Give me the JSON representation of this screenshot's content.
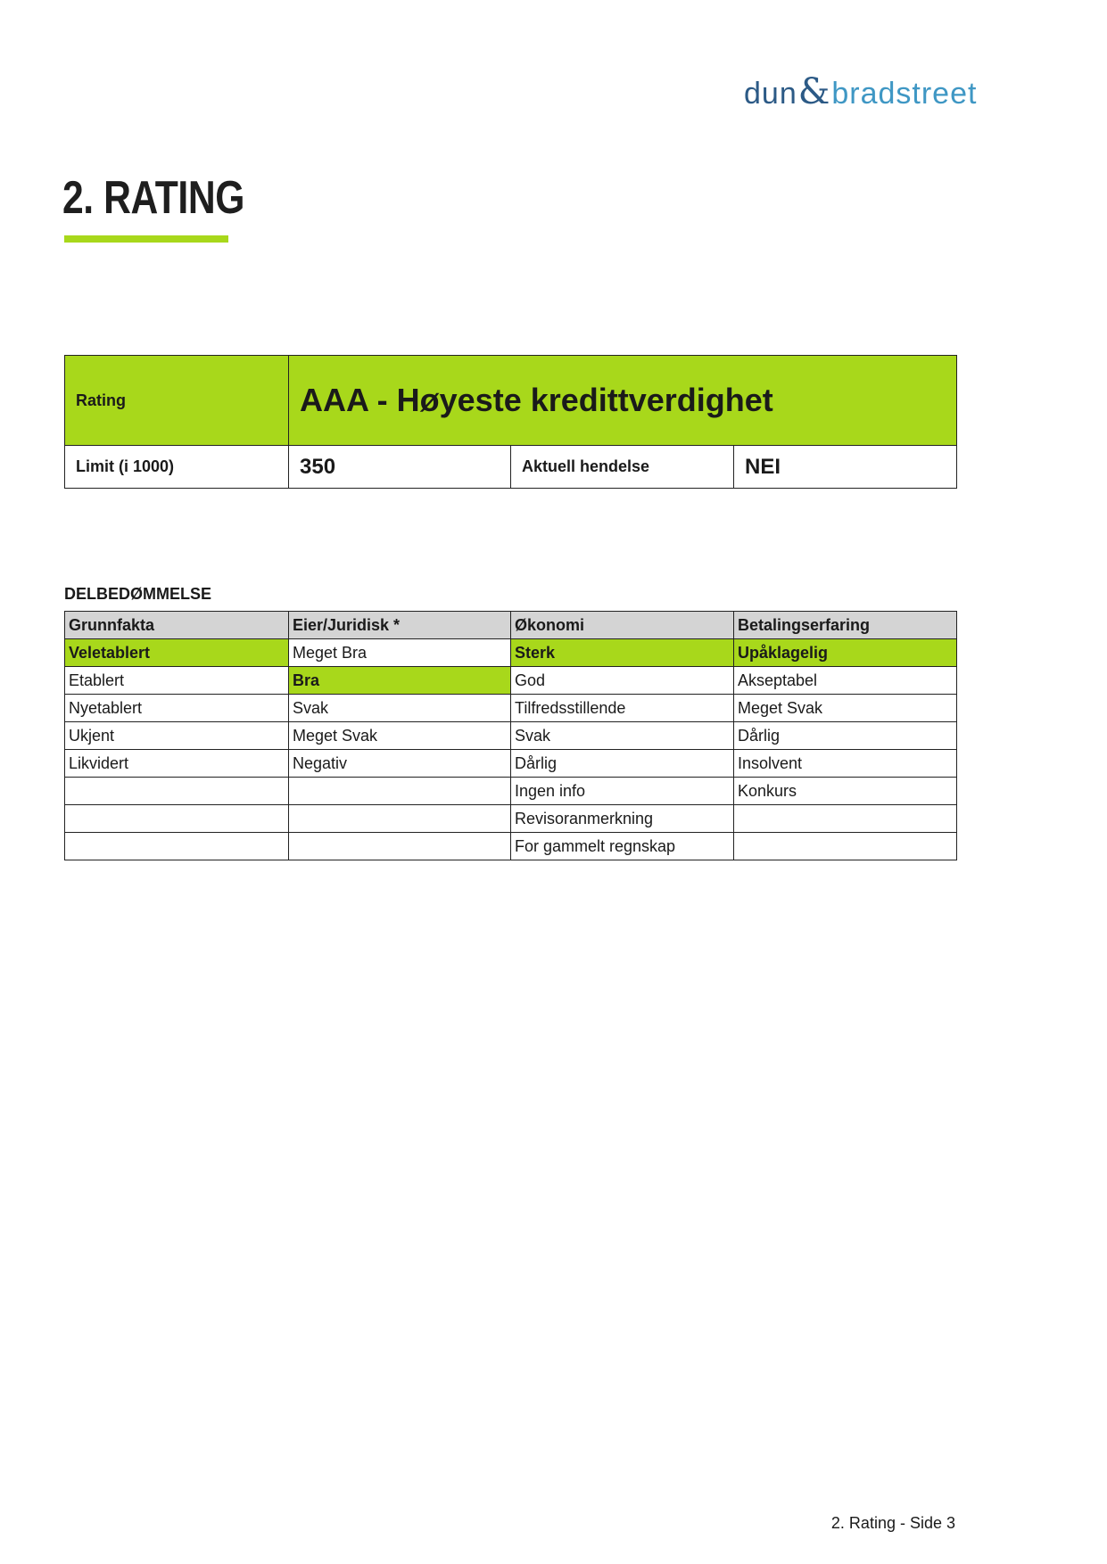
{
  "logo": {
    "part1": "dun",
    "amp": "&",
    "part2": "bradstreet"
  },
  "title": "2. RATING",
  "colors": {
    "accent": "#a8d81b",
    "header_gray": "#d4d4d4",
    "logo_dark": "#2c5a86",
    "logo_light": "#3f97c4"
  },
  "rating": {
    "label": "Rating",
    "value": "AAA - Høyeste kredittverdighet",
    "limit_label": "Limit (i 1000)",
    "limit_value": "350",
    "event_label": "Aktuell hendelse",
    "event_value": "NEI"
  },
  "section_title": "DELBEDØMMELSE",
  "sub_table": {
    "headers": [
      "Grunnfakta",
      "Eier/Juridisk *",
      "Økonomi",
      "Betalingserfaring"
    ],
    "rows": [
      [
        "Veletablert",
        "Meget Bra",
        "Sterk",
        "Upåklagelig"
      ],
      [
        "Etablert",
        "Bra",
        "God",
        "Akseptabel"
      ],
      [
        "Nyetablert",
        "Svak",
        "Tilfredsstillende",
        "Meget Svak"
      ],
      [
        "Ukjent",
        "Meget Svak",
        "Svak",
        "Dårlig"
      ],
      [
        "Likvidert",
        "Negativ",
        "Dårlig",
        "Insolvent"
      ],
      [
        "",
        "",
        "Ingen info",
        "Konkurs"
      ],
      [
        "",
        "",
        "Revisoranmerkning",
        ""
      ],
      [
        "",
        "",
        "For gammelt regnskap",
        ""
      ]
    ],
    "highlighted": [
      [
        0,
        0
      ],
      [
        0,
        2
      ],
      [
        0,
        3
      ],
      [
        1,
        1
      ]
    ]
  },
  "footer": "2. Rating - Side 3"
}
